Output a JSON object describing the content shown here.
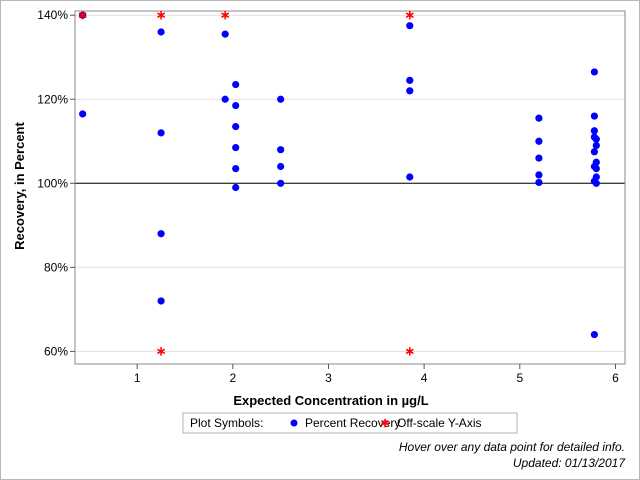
{
  "chart_data": {
    "type": "scatter",
    "xlabel": "Expected Concentration in µg/L",
    "ylabel": "Recovery, in Percent",
    "xlim": [
      0.35,
      6.1
    ],
    "ylim": [
      57,
      141
    ],
    "x_ticks": [
      1,
      2,
      3,
      4,
      5,
      6
    ],
    "y_ticks": [
      60,
      80,
      100,
      120,
      140
    ],
    "y_tick_format": "{v}%",
    "reference_line_y": 100,
    "grid": "horizontal",
    "legend": {
      "title": "Plot Symbols:",
      "placement": "bottom-center",
      "entries": [
        {
          "label": "Percent Recovery",
          "symbol": "dot",
          "color": "#0000ff"
        },
        {
          "label": "Off-scale Y-Axis",
          "symbol": "asterisk",
          "color": "#ff0000"
        }
      ]
    },
    "series": [
      {
        "name": "Percent Recovery",
        "color": "#0000ff",
        "points": [
          [
            0.43,
            140
          ],
          [
            0.43,
            116.5
          ],
          [
            1.25,
            136
          ],
          [
            1.25,
            112
          ],
          [
            1.25,
            88
          ],
          [
            1.25,
            72
          ],
          [
            1.92,
            135.5
          ],
          [
            1.92,
            120
          ],
          [
            2.03,
            123.5
          ],
          [
            2.03,
            118.5
          ],
          [
            2.03,
            113.5
          ],
          [
            2.03,
            108.5
          ],
          [
            2.03,
            103.5
          ],
          [
            2.03,
            99
          ],
          [
            2.5,
            120
          ],
          [
            2.5,
            108
          ],
          [
            2.5,
            104
          ],
          [
            2.5,
            100
          ],
          [
            3.85,
            137.5
          ],
          [
            3.85,
            124.5
          ],
          [
            3.85,
            122
          ],
          [
            3.85,
            101.5
          ],
          [
            5.2,
            115.5
          ],
          [
            5.2,
            110
          ],
          [
            5.2,
            106
          ],
          [
            5.2,
            102
          ],
          [
            5.2,
            100.2
          ],
          [
            5.78,
            126.5
          ],
          [
            5.78,
            116
          ],
          [
            5.78,
            112.5
          ],
          [
            5.78,
            111
          ],
          [
            5.8,
            110.5
          ],
          [
            5.8,
            109
          ],
          [
            5.78,
            107.5
          ],
          [
            5.8,
            105
          ],
          [
            5.78,
            104
          ],
          [
            5.8,
            103.5
          ],
          [
            5.8,
            101.5
          ],
          [
            5.78,
            100.5
          ],
          [
            5.8,
            100
          ],
          [
            5.78,
            64
          ]
        ]
      },
      {
        "name": "Off-scale Y-Axis",
        "color": "#ff0000",
        "points": [
          [
            0.43,
            140
          ],
          [
            1.25,
            140
          ],
          [
            1.92,
            140
          ],
          [
            3.85,
            140
          ],
          [
            1.25,
            60
          ],
          [
            3.85,
            60
          ]
        ]
      }
    ]
  },
  "footer": {
    "hover_note": "Hover over any data point for detailed info.",
    "updated": "Updated: 01/13/2017"
  }
}
